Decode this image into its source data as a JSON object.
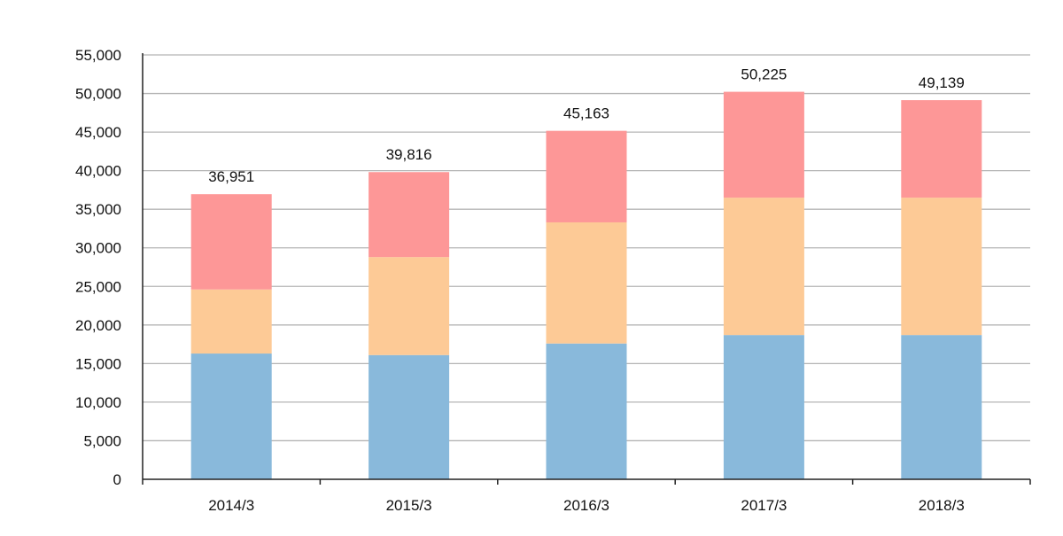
{
  "chart_data": {
    "type": "bar",
    "stacked": true,
    "categories": [
      "2014/3",
      "2015/3",
      "2016/3",
      "2017/3",
      "2018/3"
    ],
    "series": [
      {
        "color": "#89b9db",
        "values": [
          16300,
          16100,
          17600,
          18700,
          18700
        ]
      },
      {
        "color": "#fdca96",
        "values": [
          8300,
          12700,
          15700,
          17800,
          17800
        ]
      },
      {
        "color": "#fd9797",
        "values": [
          12351,
          11016,
          11863,
          13725,
          12639
        ]
      }
    ],
    "totals": [
      36951,
      39816,
      45163,
      50225,
      49139
    ],
    "total_labels": [
      "36,951",
      "39,816",
      "45,163",
      "50,225",
      "49,139"
    ],
    "ylim": [
      0,
      55000
    ],
    "y_ticks": [
      0,
      5000,
      10000,
      15000,
      20000,
      25000,
      30000,
      35000,
      40000,
      45000,
      50000,
      55000
    ],
    "y_tick_labels": [
      "0",
      "5,000",
      "10,000",
      "15,000",
      "20,000",
      "25,000",
      "30,000",
      "35,000",
      "40,000",
      "45,000",
      "50,000",
      "55,000"
    ],
    "grid": true,
    "legend": "none",
    "title": "",
    "xlabel": "",
    "ylabel": ""
  },
  "colors": {
    "grid": "#b5b5b5",
    "axis": "#222222"
  }
}
